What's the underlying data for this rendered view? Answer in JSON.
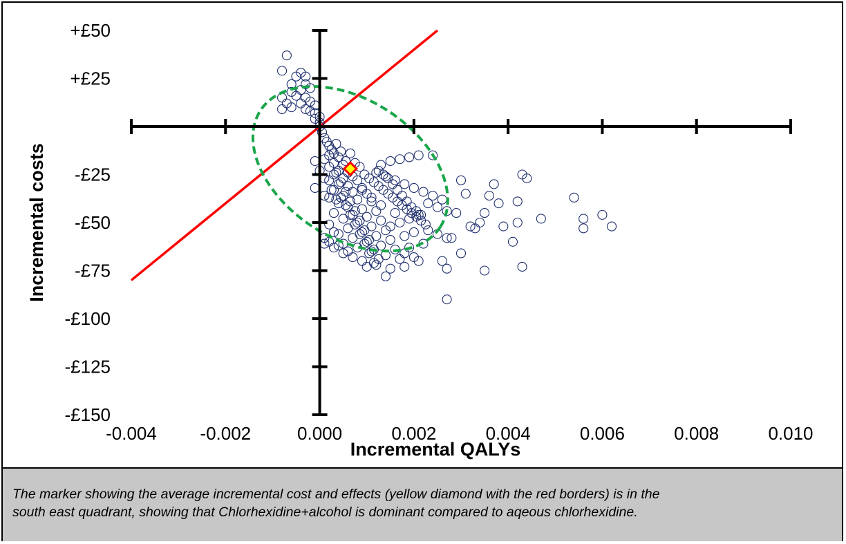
{
  "chart_data": {
    "type": "scatter",
    "xlabel": "Incremental QALYs",
    "ylabel": "Incremental costs",
    "xlim": [
      -0.004,
      0.01
    ],
    "ylim": [
      -150,
      50
    ],
    "x_ticks": [
      -0.004,
      -0.002,
      0.0,
      0.002,
      0.004,
      0.006,
      0.008,
      0.01
    ],
    "x_tick_labels": [
      "-0.004",
      "-0.002",
      "0.000",
      "0.002",
      "0.004",
      "0.006",
      "0.008",
      "0.010"
    ],
    "y_ticks": [
      50,
      25,
      0,
      -25,
      -50,
      -75,
      -100,
      -125,
      -150
    ],
    "y_tick_labels": [
      "+£50",
      "+£25",
      "",
      "-£25",
      "-£50",
      "-£75",
      "-£100",
      "-£125",
      "-£150"
    ],
    "grid": false,
    "marker_color": "#1f2f6e",
    "mean_point": {
      "x": 0.00065,
      "y": -22,
      "fill": "#ffff00",
      "stroke": "#ff0000"
    },
    "threshold_line": {
      "x1": -0.004,
      "y1": -80,
      "x2": 0.0025,
      "y2": 50,
      "color": "#ff0000"
    },
    "ellipse_color": "#1aa64a",
    "points": [
      [
        -0.0007,
        37
      ],
      [
        -0.0008,
        29
      ],
      [
        -0.0004,
        28
      ],
      [
        -0.0003,
        26
      ],
      [
        -0.0005,
        26
      ],
      [
        -0.0006,
        22
      ],
      [
        -0.0003,
        22
      ],
      [
        -0.0004,
        19
      ],
      [
        -0.0002,
        20
      ],
      [
        -0.0006,
        18
      ],
      [
        -0.0008,
        15
      ],
      [
        -0.0005,
        16
      ],
      [
        -0.0003,
        15
      ],
      [
        -0.0007,
        12
      ],
      [
        -0.0004,
        12
      ],
      [
        -0.0002,
        13
      ],
      [
        -0.0006,
        10
      ],
      [
        -0.0003,
        9
      ],
      [
        -0.0008,
        9
      ],
      [
        -0.0001,
        11
      ],
      [
        -0.0002,
        8
      ],
      [
        -0.0001,
        7
      ],
      [
        0.0,
        5
      ],
      [
        -0.0001,
        4
      ],
      [
        0.0,
        2
      ],
      [
        0.0,
        0
      ],
      [
        5e-05,
        -3
      ],
      [
        0.0001,
        -6
      ],
      [
        0.00015,
        -8
      ],
      [
        0.0002,
        -10
      ],
      [
        0.00025,
        -12
      ],
      [
        0.0003,
        -14
      ],
      [
        0.0002,
        -15
      ],
      [
        0.0004,
        -16
      ],
      [
        0.0001,
        -17
      ],
      [
        0.0003,
        -19
      ],
      [
        0.0005,
        -20
      ],
      [
        0.0002,
        -21
      ],
      [
        0.0004,
        -23
      ],
      [
        0.0006,
        -24
      ],
      [
        0.0003,
        -25
      ],
      [
        0.0007,
        -26
      ],
      [
        0.0005,
        -27
      ],
      [
        0.0002,
        -28
      ],
      [
        0.0008,
        -28
      ],
      [
        0.0004,
        -30
      ],
      [
        0.0006,
        -31
      ],
      [
        0.0009,
        -32
      ],
      [
        0.0003,
        -33
      ],
      [
        0.0007,
        -34
      ],
      [
        0.001,
        -35
      ],
      [
        0.0005,
        -36
      ],
      [
        0.0002,
        -37
      ],
      [
        0.0008,
        -38
      ],
      [
        0.0011,
        -39
      ],
      [
        0.0004,
        -40
      ],
      [
        0.0006,
        -42
      ],
      [
        0.0009,
        -43
      ],
      [
        0.0012,
        -44
      ],
      [
        0.0003,
        -45
      ],
      [
        0.0007,
        -46
      ],
      [
        0.001,
        -47
      ],
      [
        0.0005,
        -48
      ],
      [
        0.0013,
        -49
      ],
      [
        0.0008,
        -50
      ],
      [
        0.0002,
        -51
      ],
      [
        0.0011,
        -52
      ],
      [
        0.0006,
        -53
      ],
      [
        0.0014,
        -54
      ],
      [
        0.0009,
        -55
      ],
      [
        0.0004,
        -56
      ],
      [
        0.0012,
        -57
      ],
      [
        0.0007,
        -58
      ],
      [
        0.0015,
        -59
      ],
      [
        0.001,
        -60
      ],
      [
        0.0005,
        -61
      ],
      [
        0.0013,
        -62
      ],
      [
        0.0008,
        -63
      ],
      [
        0.0016,
        -64
      ],
      [
        0.0011,
        -65
      ],
      [
        0.0018,
        -66
      ],
      [
        0.0014,
        -67
      ],
      [
        0.002,
        -68
      ],
      [
        0.0017,
        -69
      ],
      [
        0.0022,
        -61
      ],
      [
        0.0019,
        -63
      ],
      [
        0.0002,
        -60
      ],
      [
        0.0004,
        -62
      ],
      [
        0.0006,
        -65
      ],
      [
        0.0001,
        -58
      ],
      [
        0.0003,
        -55
      ],
      [
        0.0009,
        -70
      ],
      [
        0.0012,
        -72
      ],
      [
        0.0015,
        -74
      ],
      [
        0.0018,
        -73
      ],
      [
        0.0021,
        -70
      ],
      [
        0.0013,
        -20
      ],
      [
        0.0015,
        -18
      ],
      [
        0.0017,
        -17
      ],
      [
        0.0019,
        -16
      ],
      [
        0.0021,
        -15
      ],
      [
        0.0024,
        -15
      ],
      [
        0.0012,
        -24
      ],
      [
        0.0014,
        -26
      ],
      [
        0.0016,
        -28
      ],
      [
        0.0018,
        -30
      ],
      [
        0.002,
        -32
      ],
      [
        0.0022,
        -34
      ],
      [
        0.0024,
        -36
      ],
      [
        0.0026,
        -38
      ],
      [
        0.0023,
        -40
      ],
      [
        0.0025,
        -42
      ],
      [
        0.0027,
        -44
      ],
      [
        0.0021,
        -46
      ],
      [
        0.0019,
        -48
      ],
      [
        0.0017,
        -50
      ],
      [
        0.0015,
        -52
      ],
      [
        0.0023,
        -54
      ],
      [
        0.0025,
        -56
      ],
      [
        0.0027,
        -58
      ],
      [
        0.002,
        -55
      ],
      [
        0.0018,
        -57
      ],
      [
        0.0016,
        -45
      ],
      [
        0.0013,
        -41
      ],
      [
        0.0011,
        -37
      ],
      [
        0.0009,
        -33
      ],
      [
        0.003,
        -28
      ],
      [
        0.0031,
        -35
      ],
      [
        0.0029,
        -45
      ],
      [
        0.0032,
        -52
      ],
      [
        0.0028,
        -58
      ],
      [
        0.003,
        -66
      ],
      [
        0.0026,
        -70
      ],
      [
        0.0027,
        -74
      ],
      [
        0.0034,
        -50
      ],
      [
        0.0035,
        -45
      ],
      [
        0.0033,
        -53
      ],
      [
        0.0036,
        -36
      ],
      [
        0.0037,
        -30
      ],
      [
        0.0038,
        -40
      ],
      [
        0.0039,
        -52
      ],
      [
        0.0041,
        -60
      ],
      [
        0.0035,
        -75
      ],
      [
        0.0043,
        -25
      ],
      [
        0.0044,
        -27
      ],
      [
        0.0042,
        -39
      ],
      [
        0.0042,
        -50
      ],
      [
        0.0043,
        -73
      ],
      [
        0.0047,
        -48
      ],
      [
        0.0054,
        -37
      ],
      [
        0.0056,
        -48
      ],
      [
        0.0056,
        -53
      ],
      [
        0.006,
        -46
      ],
      [
        0.0062,
        -52
      ],
      [
        0.0027,
        -90
      ],
      [
        0.0014,
        -78
      ],
      [
        0.001,
        -73
      ],
      [
        0.0007,
        -68
      ],
      [
        0.0005,
        -66
      ],
      [
        0.0003,
        -63
      ],
      [
        0.0001,
        -61
      ],
      [
        -0.0001,
        -32
      ],
      [
        -0.0001,
        -18
      ],
      [
        0.0,
        -23
      ],
      [
        0.0001,
        -27
      ],
      [
        0.0001,
        -36
      ],
      [
        0.00035,
        -9
      ],
      [
        0.00045,
        -13
      ],
      [
        0.00055,
        -18
      ],
      [
        0.00065,
        -14
      ],
      [
        0.00075,
        -19
      ],
      [
        0.00085,
        -21
      ],
      [
        0.00095,
        -25
      ],
      [
        0.00105,
        -27
      ],
      [
        0.00115,
        -29
      ],
      [
        0.00125,
        -31
      ],
      [
        0.00135,
        -33
      ],
      [
        0.00145,
        -35
      ],
      [
        0.00155,
        -37
      ],
      [
        0.00165,
        -39
      ],
      [
        0.00175,
        -41
      ],
      [
        0.00185,
        -43
      ],
      [
        0.00195,
        -45
      ],
      [
        0.00205,
        -47
      ],
      [
        0.00215,
        -49
      ],
      [
        0.00225,
        -51
      ],
      [
        0.00035,
        -24
      ],
      [
        0.00045,
        -29
      ],
      [
        0.00055,
        -34
      ],
      [
        0.00065,
        -39
      ],
      [
        0.00075,
        -44
      ],
      [
        0.00085,
        -49
      ],
      [
        0.00095,
        -54
      ],
      [
        0.00105,
        -59
      ],
      [
        0.00115,
        -64
      ],
      [
        0.00125,
        -69
      ],
      [
        0.00045,
        -37
      ],
      [
        0.00055,
        -41
      ],
      [
        0.00065,
        -46
      ],
      [
        0.00075,
        -51
      ],
      [
        0.00085,
        -56
      ],
      [
        0.00095,
        -61
      ],
      [
        0.00105,
        -66
      ],
      [
        0.00115,
        -71
      ],
      [
        0.00025,
        -33
      ],
      [
        0.00035,
        -38
      ],
      [
        0.00125,
        -23
      ],
      [
        0.00135,
        -25
      ],
      [
        0.00145,
        -27
      ],
      [
        0.00155,
        -30
      ],
      [
        0.00165,
        -33
      ],
      [
        0.00175,
        -36
      ],
      [
        0.00185,
        -39
      ],
      [
        0.00195,
        -42
      ],
      [
        0.00205,
        -44
      ],
      [
        0.00215,
        -46
      ]
    ]
  },
  "caption": {
    "line1": "The marker showing the average incremental cost and effects (yellow diamond with the red borders) is in the",
    "line2": "south east quadrant, showing that Chlorhexidine+alcohol is dominant compared to aqeous chlorhexidine."
  }
}
